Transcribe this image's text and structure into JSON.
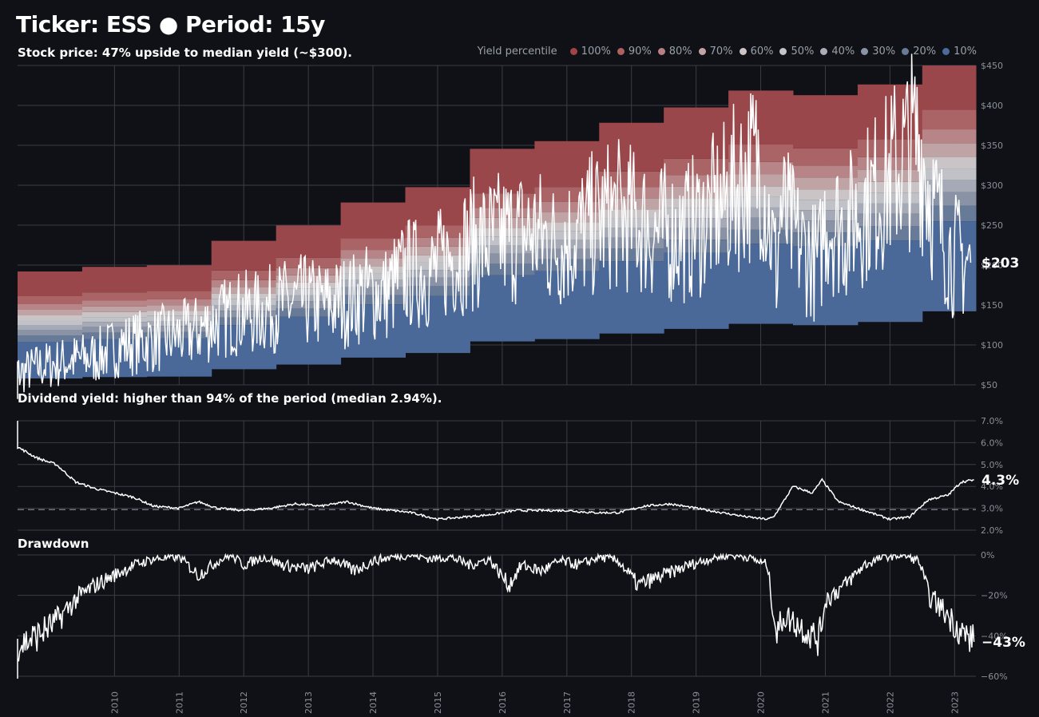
{
  "title": "Ticker: ESS  ●  Period: 15y",
  "subtitle_price": "Stock price:  47% upside to median yield (~$300).",
  "subtitle_yield": "Dividend yield: higher than 94% of the period (median 2.94%).",
  "subtitle_drawdown": "Drawdown",
  "legend": {
    "title": "Yield percentile",
    "items": [
      {
        "label": "100%",
        "color": "#a04448"
      },
      {
        "label": "90%",
        "color": "#b06060"
      },
      {
        "label": "80%",
        "color": "#b98083"
      },
      {
        "label": "70%",
        "color": "#c4a3a5"
      },
      {
        "label": "60%",
        "color": "#cfc4c5"
      },
      {
        "label": "50%",
        "color": "#c3c5ca"
      },
      {
        "label": "40%",
        "color": "#a8adb8"
      },
      {
        "label": "30%",
        "color": "#8a93a6"
      },
      {
        "label": "20%",
        "color": "#687a98"
      },
      {
        "label": "10%",
        "color": "#4c6b9b"
      }
    ]
  },
  "colors": {
    "background": "#0f1117",
    "grid": "#3a3d44",
    "line": "#ffffff",
    "axis_text": "#8a8f98"
  },
  "chart_data": [
    {
      "type": "area",
      "name": "price",
      "ylim": [
        50,
        450
      ],
      "yticks": [
        "$50",
        "$100",
        "$150",
        "$200",
        "$250",
        "$300",
        "$350",
        "$400",
        "$450"
      ],
      "ytick_values": [
        50,
        100,
        150,
        200,
        250,
        300,
        350,
        400,
        450
      ],
      "last_label": "$203",
      "x": [
        2008.3,
        2008.8,
        2009.3,
        2009.7,
        2010.1,
        2010.5,
        2010.9,
        2011.2,
        2011.6,
        2011.9,
        2012.2,
        2012.6,
        2012.9,
        2013.2,
        2013.6,
        2013.9,
        2014.2,
        2014.5,
        2014.9,
        2015.2,
        2015.5,
        2015.8,
        2016.1,
        2016.5,
        2016.8,
        2017.1,
        2017.4,
        2017.7,
        2018.1,
        2018.4,
        2018.8,
        2019.1,
        2019.4,
        2019.7,
        2020.0,
        2020.25,
        2020.3,
        2020.6,
        2020.9,
        2021.0,
        2021.3,
        2021.6,
        2021.9,
        2022.2,
        2022.45,
        2022.7,
        2022.95,
        2023.25
      ],
      "y": [
        57,
        72,
        80,
        85,
        100,
        105,
        110,
        115,
        130,
        140,
        140,
        150,
        155,
        150,
        155,
        165,
        165,
        190,
        190,
        210,
        225,
        230,
        235,
        240,
        225,
        235,
        250,
        265,
        255,
        240,
        240,
        255,
        275,
        305,
        330,
        190,
        270,
        225,
        200,
        260,
        245,
        275,
        300,
        335,
        355,
        265,
        215,
        203
      ],
      "bands": {
        "breakpoints": [
          2009.55,
          2010.0,
          2010.55,
          2011.25,
          2011.55,
          2012.25,
          2012.55,
          2013.25,
          2013.55,
          2014.25,
          2014.55,
          2015.25,
          2015.55,
          2016.25,
          2016.55,
          2017.25,
          2017.55,
          2018.25,
          2018.55,
          2019.25,
          2019.55,
          2020.25,
          2020.55,
          2021.25,
          2021.55,
          2022.25,
          2022.55,
          2023.3
        ],
        "levels_at_start": [
          [
            58,
            104,
            112,
            119,
            125,
            131,
            137,
            144,
            151,
            161,
            192
          ],
          [
            57,
            104,
            112,
            119,
            126,
            132,
            138,
            145,
            152,
            162,
            192
          ]
        ]
      }
    },
    {
      "type": "line",
      "name": "dividend_yield",
      "ylim": [
        2.0,
        7.0
      ],
      "yticks": [
        "2.0%",
        "3.0%",
        "4.0%",
        "5.0%",
        "6.0%",
        "7.0%"
      ],
      "ytick_values": [
        2.0,
        3.0,
        4.0,
        5.0,
        6.0,
        7.0
      ],
      "median": 2.94,
      "last_label": "4.3%",
      "x": [
        2008.3,
        2008.5,
        2008.8,
        2009.1,
        2009.4,
        2009.7,
        2010.0,
        2010.3,
        2010.6,
        2011.0,
        2011.3,
        2011.6,
        2012.0,
        2012.4,
        2012.8,
        2013.2,
        2013.6,
        2014.0,
        2014.3,
        2014.6,
        2015.0,
        2015.4,
        2015.8,
        2016.2,
        2016.6,
        2017.0,
        2017.4,
        2017.8,
        2018.2,
        2018.6,
        2019.0,
        2019.4,
        2019.8,
        2020.1,
        2020.2,
        2020.5,
        2020.8,
        2020.95,
        2021.2,
        2021.5,
        2021.8,
        2022.0,
        2022.3,
        2022.6,
        2022.9,
        2023.1,
        2023.3
      ],
      "y": [
        7.0,
        5.8,
        5.3,
        5.0,
        4.2,
        3.9,
        3.7,
        3.5,
        3.1,
        3.0,
        3.3,
        3.0,
        2.9,
        3.0,
        3.2,
        3.1,
        3.3,
        3.0,
        2.9,
        2.8,
        2.5,
        2.6,
        2.7,
        2.9,
        2.9,
        2.9,
        2.8,
        2.8,
        3.1,
        3.2,
        3.0,
        2.8,
        2.6,
        2.5,
        2.6,
        4.0,
        3.7,
        4.3,
        3.3,
        3.0,
        2.7,
        2.5,
        2.6,
        3.4,
        3.6,
        4.2,
        4.3
      ]
    },
    {
      "type": "line",
      "name": "drawdown",
      "ylim": [
        -60,
        0
      ],
      "yticks": [
        "0%",
        "−20%",
        "−40%",
        "−60%"
      ],
      "ytick_values": [
        0,
        -20,
        -40,
        -60
      ],
      "last_label": "−43%",
      "x": [
        2008.3,
        2008.5,
        2008.8,
        2009.1,
        2009.4,
        2009.7,
        2010.0,
        2010.3,
        2010.6,
        2011.0,
        2011.3,
        2011.6,
        2011.8,
        2012.0,
        2012.3,
        2012.6,
        2013.0,
        2013.4,
        2013.7,
        2014.0,
        2014.3,
        2014.6,
        2014.9,
        2015.2,
        2015.5,
        2015.8,
        2016.1,
        2016.3,
        2016.6,
        2016.9,
        2017.2,
        2017.5,
        2017.8,
        2018.1,
        2018.5,
        2018.9,
        2019.2,
        2019.5,
        2019.8,
        2020.1,
        2020.25,
        2020.35,
        2020.6,
        2020.9,
        2021.0,
        2021.3,
        2021.6,
        2021.9,
        2022.2,
        2022.45,
        2022.6,
        2022.9,
        2023.1,
        2023.3
      ],
      "y": [
        -55,
        -45,
        -40,
        -33,
        -22,
        -15,
        -10,
        -5,
        -2,
        -1,
        -10,
        -3,
        0,
        -5,
        -1,
        -5,
        -7,
        -2,
        -8,
        -3,
        -1,
        0,
        -2,
        -1,
        -5,
        -2,
        -15,
        -5,
        -8,
        -3,
        -5,
        -1,
        -3,
        -15,
        -10,
        -5,
        -2,
        0,
        -1,
        -5,
        -40,
        -30,
        -35,
        -42,
        -22,
        -15,
        -5,
        -1,
        0,
        -3,
        -20,
        -30,
        -38,
        -43
      ]
    }
  ],
  "x_years": [
    "2010",
    "2011",
    "2012",
    "2013",
    "2014",
    "2015",
    "2016",
    "2017",
    "2018",
    "2019",
    "2020",
    "2021",
    "2022",
    "2023"
  ],
  "x_range": [
    2008.5,
    2023.33
  ]
}
